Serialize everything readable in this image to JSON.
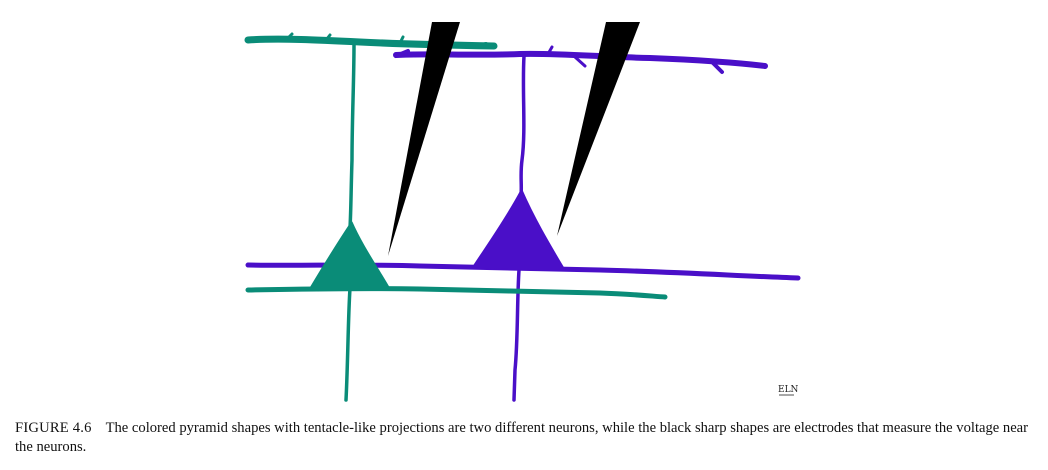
{
  "figure": {
    "label": "FIGURE 4.6",
    "caption": "The colored pyramid shapes with tentacle-like projections are two different neurons, while the black sharp shapes are electrodes that measure the voltage near the neurons.",
    "signature": "ELN",
    "colors": {
      "neuron_left": "#0a8c78",
      "neuron_right": "#4a0fc8",
      "electrode": "#000000",
      "background": "#ffffff",
      "caption_text": "#111111"
    },
    "icons": [
      "neuron-left-icon",
      "neuron-right-icon",
      "electrode-left-icon",
      "electrode-right-icon"
    ]
  }
}
